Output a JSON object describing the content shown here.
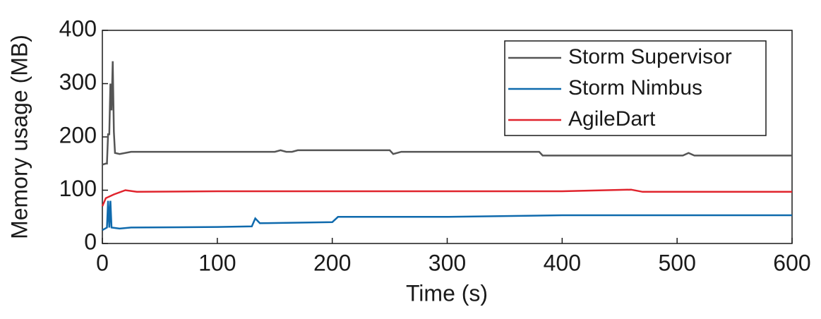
{
  "chart_data": {
    "type": "line",
    "xlabel": "Time (s)",
    "ylabel": "Memory usage (MB)",
    "xlim": [
      0,
      600
    ],
    "xticks": [
      0,
      100,
      200,
      300,
      400,
      500,
      600
    ],
    "ylim": [
      0,
      400
    ],
    "yticks": [
      0,
      100,
      200,
      300,
      400
    ],
    "legend": "upper right",
    "series": [
      {
        "name": "Storm Supervisor",
        "color": "#555555",
        "x": [
          0,
          3,
          4,
          5,
          6,
          7,
          8,
          9,
          10,
          11,
          15,
          25,
          150,
          155,
          160,
          165,
          170,
          250,
          253,
          260,
          380,
          383,
          505,
          510,
          515,
          600
        ],
        "values": [
          148,
          150,
          150,
          205,
          205,
          300,
          250,
          342,
          210,
          170,
          168,
          172,
          172,
          175,
          172,
          172,
          175,
          175,
          168,
          172,
          172,
          165,
          165,
          170,
          165,
          165
        ]
      },
      {
        "name": "Storm Nimbus",
        "color": "#0f6aad",
        "x": [
          0,
          4,
          5,
          6,
          7,
          8,
          15,
          25,
          100,
          130,
          133,
          137,
          200,
          205,
          300,
          400,
          600
        ],
        "values": [
          25,
          30,
          80,
          30,
          80,
          30,
          28,
          30,
          31,
          32,
          47,
          38,
          40,
          50,
          50,
          53,
          53
        ]
      },
      {
        "name": "AgileDart",
        "color": "#e0242d",
        "x": [
          0,
          3,
          10,
          20,
          30,
          100,
          300,
          400,
          460,
          470,
          600
        ],
        "values": [
          70,
          85,
          92,
          100,
          97,
          98,
          98,
          98,
          101,
          97,
          97
        ]
      }
    ]
  }
}
